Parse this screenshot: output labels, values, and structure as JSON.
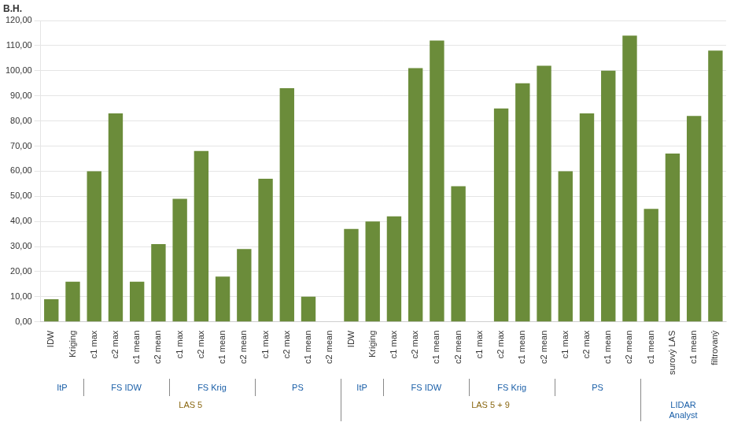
{
  "chart_data": {
    "type": "bar",
    "ylabel": "B.H.",
    "categories": [
      "IDW",
      "Kriging",
      "c1 max",
      "c2 max",
      "c1 mean",
      "c2 mean",
      "c1 max",
      "c2 max",
      "c1 mean",
      "c2 mean",
      "c1 max",
      "c2 max",
      "c1 mean",
      "c2 mean",
      "IDW",
      "Kriging",
      "c1 max",
      "c2 max",
      "c1 mean",
      "c2 mean",
      "c1 max",
      "c2 max",
      "c1 mean",
      "c2 mean",
      "c1 max",
      "c2 max",
      "c1 mean",
      "c2 mean",
      "c1 mean",
      "surový LAS",
      "c1 mean",
      "filtrovaný"
    ],
    "values": [
      9,
      16,
      60,
      83,
      16,
      31,
      49,
      68,
      18,
      29,
      57,
      93,
      10,
      0,
      37,
      40,
      42,
      101,
      112,
      54,
      0,
      85,
      95,
      102,
      60,
      83,
      100,
      114,
      45,
      67,
      82,
      108
    ],
    "color": "#6b8c3a",
    "ylim": [
      0,
      120
    ],
    "yticks": [
      {
        "value": 0,
        "label": "0,00"
      },
      {
        "value": 10,
        "label": "10,00"
      },
      {
        "value": 20,
        "label": "20,00"
      },
      {
        "value": 30,
        "label": "30,00"
      },
      {
        "value": 40,
        "label": "40,00"
      },
      {
        "value": 50,
        "label": "50,00"
      },
      {
        "value": 60,
        "label": "60,00"
      },
      {
        "value": 70,
        "label": "70,00"
      },
      {
        "value": 80,
        "label": "80,00"
      },
      {
        "value": 90,
        "label": "90,00"
      },
      {
        "value": 100,
        "label": "100,00"
      },
      {
        "value": 110,
        "label": "110,00"
      },
      {
        "value": 120,
        "label": "120,00"
      }
    ],
    "grid": true,
    "annotations": [
      {
        "text": "ItP",
        "level": 1,
        "from": 0,
        "to": 1,
        "color": "#1a5fa8"
      },
      {
        "text": "FS IDW",
        "level": 1,
        "from": 2,
        "to": 5,
        "color": "#1a5fa8"
      },
      {
        "text": "FS Krig",
        "level": 1,
        "from": 6,
        "to": 9,
        "color": "#1a5fa8"
      },
      {
        "text": "PS",
        "level": 1,
        "from": 10,
        "to": 13,
        "color": "#1a5fa8"
      },
      {
        "text": "ItP",
        "level": 1,
        "from": 14,
        "to": 15,
        "color": "#1a5fa8"
      },
      {
        "text": "FS IDW",
        "level": 1,
        "from": 16,
        "to": 19,
        "color": "#1a5fa8"
      },
      {
        "text": "FS Krig",
        "level": 1,
        "from": 20,
        "to": 23,
        "color": "#1a5fa8"
      },
      {
        "text": "PS",
        "level": 1,
        "from": 24,
        "to": 27,
        "color": "#1a5fa8"
      },
      {
        "text": "LAS 5",
        "level": 2,
        "from": 0,
        "to": 13,
        "color": "#8b6914"
      },
      {
        "text": "LAS 5 + 9",
        "level": 2,
        "from": 14,
        "to": 27,
        "color": "#8b6914"
      },
      {
        "text": "LIDAR\nAnalyst",
        "level": 2,
        "from": 28,
        "to": 31,
        "color": "#1a5fa8"
      }
    ]
  }
}
